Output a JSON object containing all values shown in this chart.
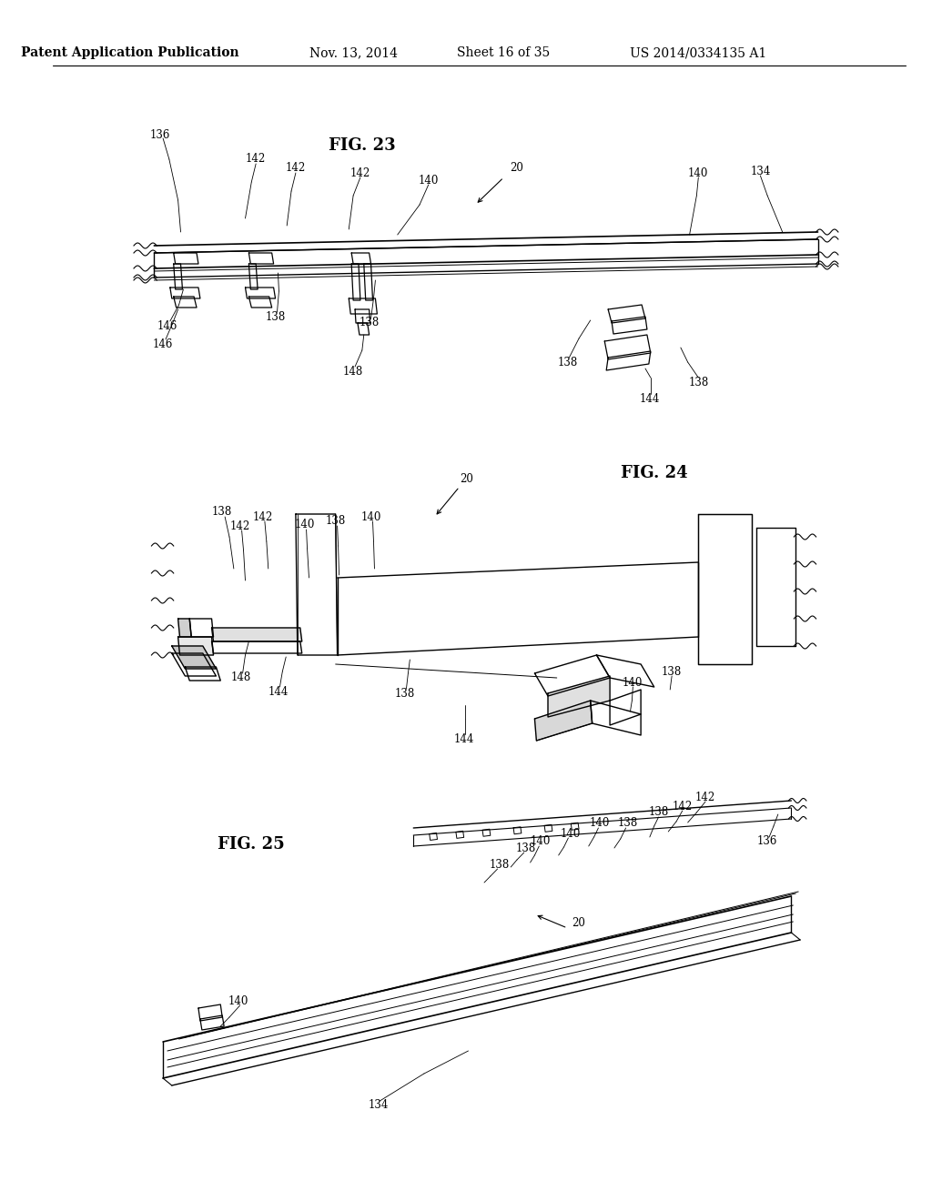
{
  "background_color": "#ffffff",
  "header_text": "Patent Application Publication",
  "header_date": "Nov. 13, 2014",
  "header_sheet": "Sheet 16 of 35",
  "header_patent": "US 2014/0334135 A1",
  "fig23_label": "FIG. 23",
  "fig24_label": "FIG. 24",
  "fig25_label": "FIG. 25",
  "fig_label_fontsize": 13,
  "ref_fontsize": 8.5,
  "header_fontsize": 10
}
